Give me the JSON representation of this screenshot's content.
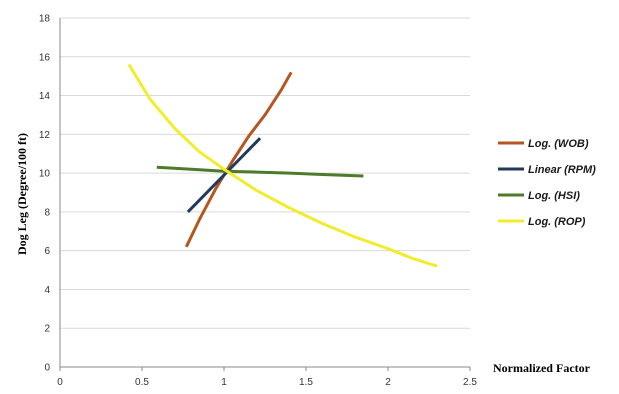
{
  "chart_data": {
    "type": "line",
    "xlabel": "Normalized Factor",
    "ylabel": "Dog Leg (Degree/100 ft)",
    "xlim": [
      0,
      2.5
    ],
    "ylim": [
      0,
      18
    ],
    "x_ticks": [
      "0",
      "0.5",
      "1",
      "1.5",
      "2",
      "2.5"
    ],
    "y_ticks": [
      "0",
      "2",
      "4",
      "6",
      "8",
      "10",
      "12",
      "14",
      "16",
      "18"
    ],
    "grid": "horizontal",
    "legend_position": "right",
    "series": [
      {
        "name": "Log. (WOB)",
        "color": "#b5561f",
        "points": [
          [
            0.77,
            6.2
          ],
          [
            0.85,
            7.6
          ],
          [
            0.95,
            9.2
          ],
          [
            1.05,
            10.6
          ],
          [
            1.15,
            11.9
          ],
          [
            1.25,
            13.0
          ],
          [
            1.35,
            14.3
          ],
          [
            1.41,
            15.2
          ]
        ]
      },
      {
        "name": "Linear (RPM)",
        "color": "#1f3a5a",
        "points": [
          [
            0.78,
            8.0
          ],
          [
            1.22,
            11.8
          ]
        ]
      },
      {
        "name": "Log. (HSI)",
        "color": "#4e7a2a",
        "points": [
          [
            0.59,
            10.3
          ],
          [
            0.8,
            10.2
          ],
          [
            1.0,
            10.1
          ],
          [
            1.2,
            10.05
          ],
          [
            1.4,
            10.0
          ],
          [
            1.6,
            9.93
          ],
          [
            1.85,
            9.85
          ]
        ]
      },
      {
        "name": "Log. (ROP)",
        "color": "#f2ec2e",
        "points": [
          [
            0.42,
            15.6
          ],
          [
            0.55,
            13.8
          ],
          [
            0.7,
            12.3
          ],
          [
            0.85,
            11.1
          ],
          [
            1.0,
            10.2
          ],
          [
            1.2,
            9.1
          ],
          [
            1.4,
            8.2
          ],
          [
            1.6,
            7.4
          ],
          [
            1.8,
            6.7
          ],
          [
            2.0,
            6.1
          ],
          [
            2.15,
            5.6
          ],
          [
            2.3,
            5.2
          ]
        ]
      }
    ]
  }
}
